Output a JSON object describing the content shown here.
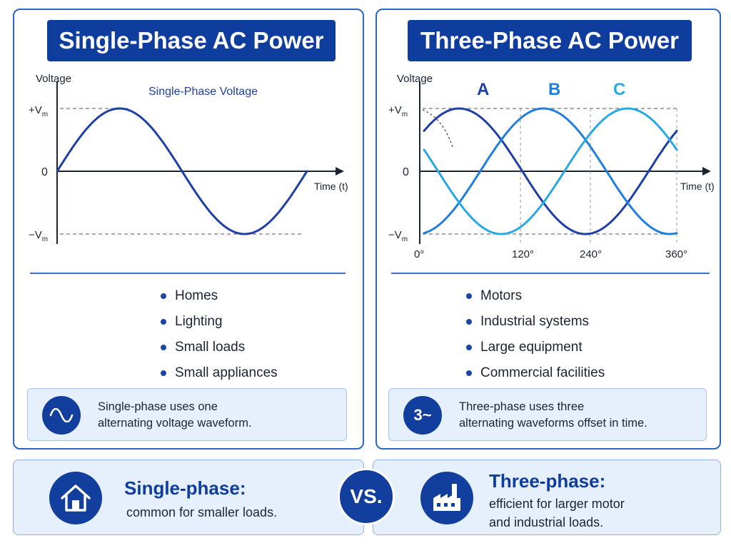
{
  "colors": {
    "primary": "#0f3d9e",
    "accent_blue": "#2b63c6",
    "wave_single": "#1f3fa8",
    "wave_a": "#1f3fa8",
    "wave_b": "#1f7fe0",
    "wave_c": "#27a9e6",
    "note_bg": "#e6effc"
  },
  "single_phase": {
    "title": "Single-Phase AC Power",
    "chart_label": "Single-Phase Voltage",
    "uses": [
      "Homes",
      "Lighting",
      "Small loads",
      "Small appliances"
    ],
    "note_line1": "Single-phase uses one",
    "note_line2": "alternating voltage waveform.",
    "note_icon": "sine-wave-icon"
  },
  "three_phase": {
    "title": "Three-Phase AC Power",
    "uses": [
      "Motors",
      "Industrial systems",
      "Large equipment",
      "Commercial facilities"
    ],
    "note_line1": "Three-phase uses three",
    "note_line2": "alternating waveforms offset in time.",
    "note_icon_text": "3~"
  },
  "summary": {
    "single_title": "Single-phase:",
    "single_text": "common for smaller loads.",
    "single_icon": "house-icon",
    "three_title": "Three-phase:",
    "three_text_line1": "efficient for larger motor",
    "three_text_line2": "and industrial loads.",
    "three_icon": "factory-icon",
    "vs_label": "VS."
  },
  "chart_data": [
    {
      "type": "line",
      "title": "Single-Phase Voltage",
      "xlabel": "Time (t)",
      "ylabel": "Voltage",
      "y_ticks": [
        "+V",
        "0",
        "−V"
      ],
      "y_tick_sub": "m",
      "ylim": [
        -1,
        1
      ],
      "series": [
        {
          "color": "#1f3fa8",
          "x": [
            0,
            45,
            90,
            135,
            180,
            225,
            270,
            315,
            360
          ],
          "values": [
            0,
            0.71,
            1,
            0.71,
            0,
            -0.71,
            -1,
            -0.71,
            0
          ]
        }
      ]
    },
    {
      "type": "line",
      "xlabel": "Time (t)",
      "ylabel": "Voltage",
      "y_ticks": [
        "+V",
        "0",
        "−V"
      ],
      "y_tick_sub": "m",
      "x_ticks": [
        "0°",
        "120°",
        "240°",
        "360°"
      ],
      "ylim": [
        -1,
        1
      ],
      "phase_labels": [
        "A",
        "B",
        "C"
      ],
      "series": [
        {
          "name": "A",
          "color": "#1f3fa8",
          "phase_deg": 0
        },
        {
          "name": "B",
          "color": "#1f7fe0",
          "phase_deg": 120
        },
        {
          "name": "C",
          "color": "#27a9e6",
          "phase_deg": 240
        }
      ]
    }
  ]
}
